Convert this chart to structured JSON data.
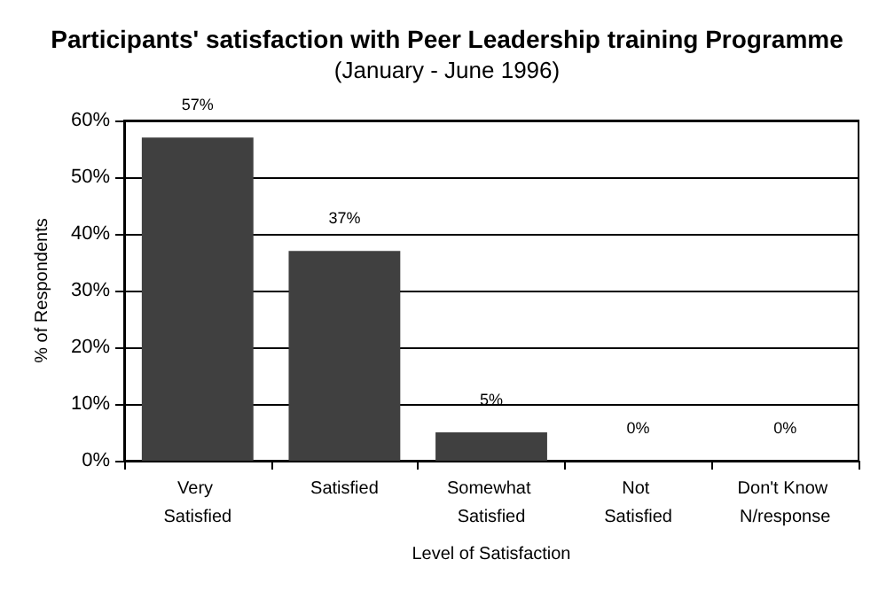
{
  "chart_data": {
    "type": "bar",
    "title": "Participants' satisfaction with Peer Leadership training Programme",
    "subtitle": "(January - June 1996)",
    "xlabel": "Level of Satisfaction",
    "ylabel": "% of Respondents",
    "categories": [
      "Very Satisfied",
      "Satisfied",
      "Somewhat Satisfied",
      "Not Satisfied",
      "Don't Know N/response"
    ],
    "values": [
      57,
      37,
      5,
      0,
      0
    ],
    "value_labels": [
      "57%",
      "37%",
      "5%",
      "0%",
      "0%"
    ],
    "color": "#404040",
    "ylim": [
      0,
      60
    ],
    "yticks": [
      {
        "value": 0,
        "label": "0%"
      },
      {
        "value": 10,
        "label": "10%"
      },
      {
        "value": 20,
        "label": "20%"
      },
      {
        "value": 30,
        "label": "30%"
      },
      {
        "value": 40,
        "label": "40%"
      },
      {
        "value": 50,
        "label": "50%"
      },
      {
        "value": 60,
        "label": "60%"
      }
    ],
    "grid": "y"
  }
}
